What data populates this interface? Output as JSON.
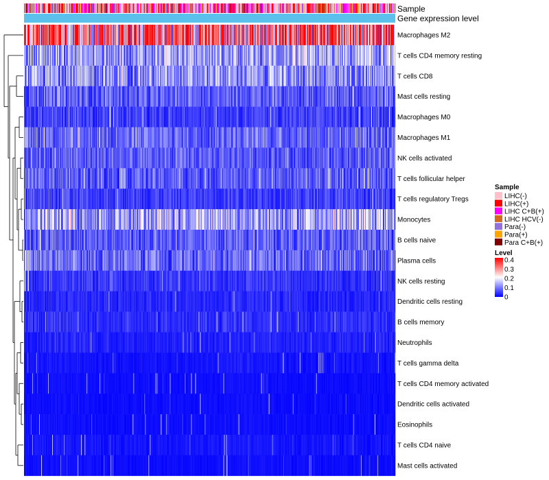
{
  "chart_data": {
    "type": "heatmap",
    "annotation_tracks": [
      "Sample",
      "Gene expression level"
    ],
    "rows": [
      "Macrophages M2",
      "T cells CD4 memory resting",
      "T cells CD8",
      "Mast cells resting",
      "Macrophages M0",
      "Macrophages M1",
      "NK cells activated",
      "T cells follicular helper",
      "T cells regulatory  Tregs",
      "Monocytes",
      "B cells naive",
      "Plasma cells",
      "NK cells resting",
      "Dendritic cells resting",
      "B cells memory",
      "Neutrophils",
      "T cells gamma delta",
      "T cells CD4 memory activated",
      "Dendritic cells activated",
      "Eosinophils",
      "T cells CD4 naive",
      "Mast cells activated"
    ],
    "row_mean_level": [
      0.32,
      0.12,
      0.11,
      0.07,
      0.05,
      0.08,
      0.07,
      0.07,
      0.05,
      0.13,
      0.07,
      0.08,
      0.04,
      0.03,
      0.035,
      0.025,
      0.015,
      0.01,
      0.01,
      0.01,
      0.015,
      0.01
    ],
    "n_samples": 540,
    "sample_legend": {
      "title": "Sample",
      "entries": [
        {
          "label": "LIHC(-)",
          "color": "#FFC0CB"
        },
        {
          "label": "LIHC(+)",
          "color": "#FF0000"
        },
        {
          "label": "LIHC C+B(+)",
          "color": "#FF00FF"
        },
        {
          "label": "LIHC HCV(-)",
          "color": "#D2691E"
        },
        {
          "label": "Para(-)",
          "color": "#9370DB"
        },
        {
          "label": "Para(+)",
          "color": "#FFA500"
        },
        {
          "label": "Para C+B(+)",
          "color": "#800000"
        }
      ]
    },
    "level_legend": {
      "title": "Level",
      "ticks": [
        "0.4",
        "0.3",
        "0.2",
        "0.1",
        "0"
      ],
      "range": [
        0,
        0.4
      ],
      "colors": {
        "low": "#0000FF",
        "mid": "#FFFFFF",
        "high": "#FF0000"
      }
    },
    "expression_bar_color": "#5BC0EB"
  }
}
